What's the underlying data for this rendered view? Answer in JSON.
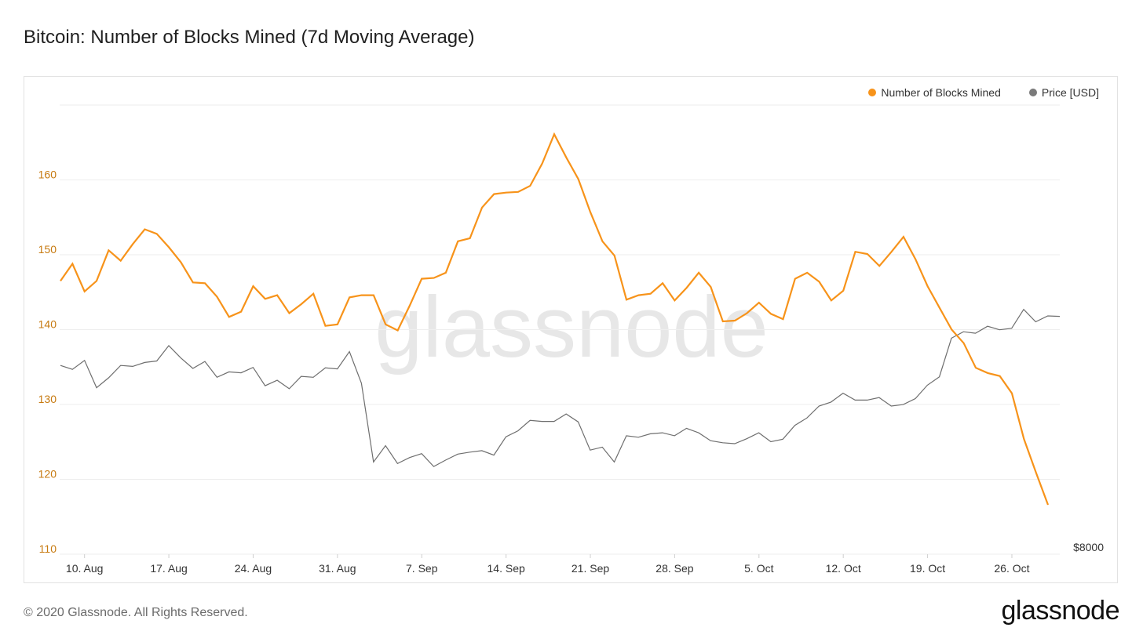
{
  "title": "Bitcoin: Number of Blocks Mined (7d Moving Average)",
  "footer": {
    "copyright": "© 2020 Glassnode. All Rights Reserved.",
    "logo": "glassnode"
  },
  "watermark": "glassnode",
  "colors": {
    "blocks": "#f7931a",
    "price": "#6e6e6e",
    "axis_text": "#c77a10",
    "grid": "#eeeeee"
  },
  "chart_data": {
    "type": "line",
    "title": "Bitcoin: Number of Blocks Mined (7d Moving Average)",
    "legend": {
      "placement": "top-right",
      "entries": [
        {
          "name": "Number of Blocks Mined",
          "color": "#f7931a"
        },
        {
          "name": "Price [USD]",
          "color": "#7a7a7a"
        }
      ]
    },
    "grid": true,
    "x_ticks": [
      "10. Aug",
      "17. Aug",
      "24. Aug",
      "31. Aug",
      "7. Sep",
      "14. Sep",
      "21. Sep",
      "28. Sep",
      "5. Oct",
      "12. Oct",
      "19. Oct",
      "26. Oct"
    ],
    "y_left": {
      "ticks": [
        "110",
        "120",
        "130",
        "140",
        "150",
        "160"
      ],
      "ylim": [
        110,
        170
      ]
    },
    "y_right": {
      "ticks": [
        "$8000"
      ]
    },
    "series": [
      {
        "name": "Number of Blocks Mined",
        "axis": "left",
        "values": [
          146.5,
          148.8,
          145.1,
          146.5,
          150.6,
          149.2,
          151.4,
          153.4,
          152.8,
          151.0,
          149.0,
          146.3,
          146.2,
          144.4,
          141.7,
          142.4,
          145.8,
          144.1,
          144.6,
          142.2,
          143.4,
          144.8,
          140.5,
          140.7,
          144.3,
          144.6,
          144.6,
          140.7,
          139.9,
          143.2,
          146.8,
          146.9,
          147.6,
          151.8,
          152.2,
          156.3,
          158.1,
          158.3,
          158.4,
          159.2,
          162.2,
          166.1,
          163.0,
          160.1,
          155.7,
          151.8,
          149.9,
          144.0,
          144.6,
          144.8,
          146.2,
          143.9,
          145.6,
          147.6,
          145.7,
          141.1,
          141.2,
          142.2,
          143.6,
          142.1,
          141.4,
          146.8,
          147.6,
          146.4,
          143.9,
          145.2,
          150.4,
          150.1,
          148.5,
          150.4,
          152.4,
          149.4,
          145.8,
          142.9,
          140.0,
          138.2,
          134.9,
          134.2,
          133.8,
          131.5,
          125.4,
          120.9,
          116.6
        ]
      },
      {
        "name": "Price [USD]",
        "axis": "right",
        "values": [
          11700,
          11620,
          11800,
          11250,
          11450,
          11700,
          11680,
          11760,
          11790,
          12100,
          11850,
          11640,
          11780,
          11460,
          11570,
          11550,
          11660,
          11290,
          11400,
          11230,
          11480,
          11460,
          11650,
          11630,
          11980,
          11340,
          9750,
          10080,
          9720,
          9840,
          9920,
          9660,
          9790,
          9910,
          9950,
          9980,
          9890,
          10260,
          10380,
          10590,
          10570,
          10570,
          10720,
          10560,
          9990,
          10050,
          9750,
          10280,
          10250,
          10320,
          10340,
          10280,
          10430,
          10340,
          10180,
          10140,
          10120,
          10220,
          10340,
          10160,
          10210,
          10490,
          10640,
          10880,
          10960,
          11140,
          11000,
          11000,
          11050,
          10880,
          10910,
          11030,
          11300,
          11470,
          12250,
          12380,
          12350,
          12490,
          12420,
          12450,
          12830,
          12580,
          12700,
          12690
        ]
      }
    ]
  }
}
